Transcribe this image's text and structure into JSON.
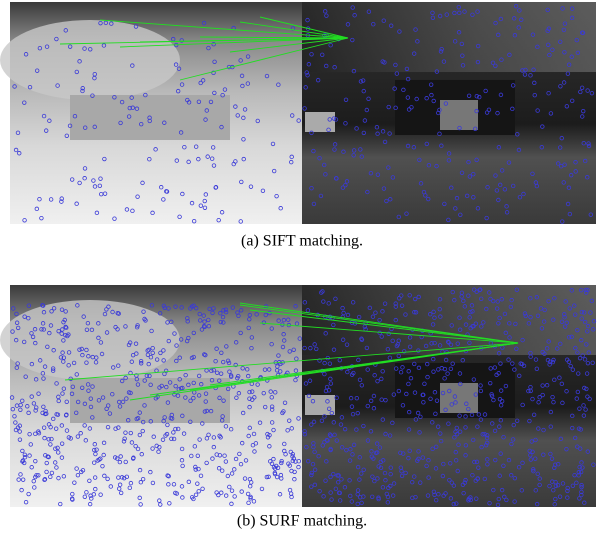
{
  "figures": [
    {
      "caption": "(a) SIFT matching."
    },
    {
      "caption": "(b) SURF matching."
    }
  ]
}
